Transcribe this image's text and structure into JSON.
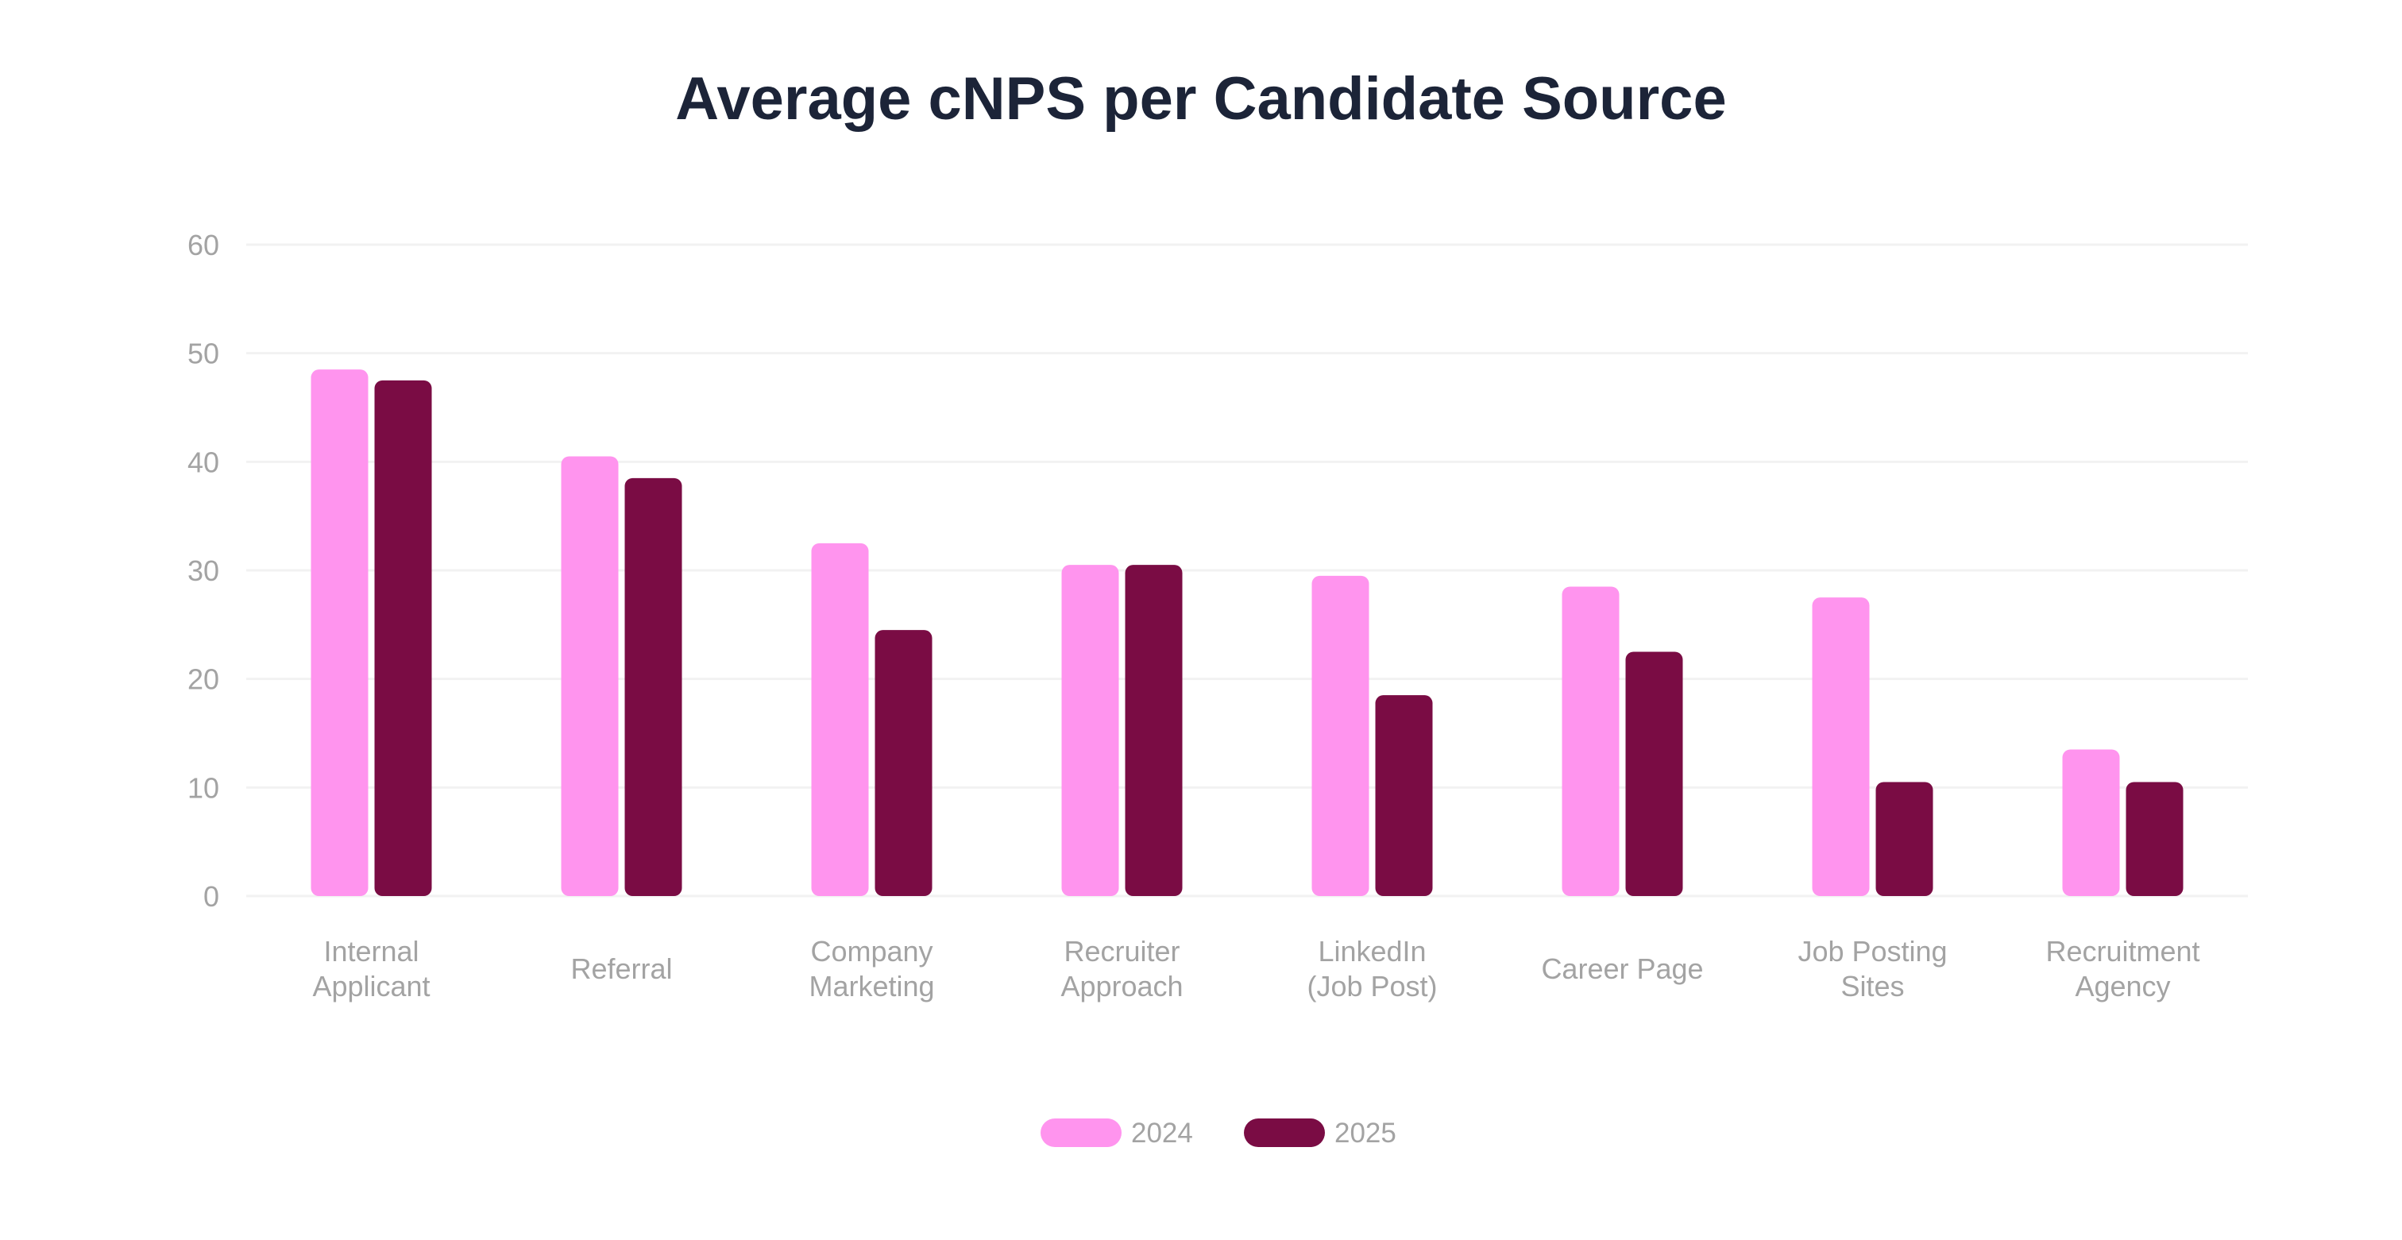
{
  "colors": {
    "series_2024": "#ff94ee",
    "series_2025": "#7a0c44",
    "title": "#1c2438",
    "axis_text": "#a3a3a3",
    "grid": "#f2f2f2"
  },
  "chart_data": {
    "type": "bar",
    "title": "Average cNPS per Candidate Source",
    "xlabel": "",
    "ylabel": "",
    "ylim": [
      0,
      60
    ],
    "yticks": [
      0,
      10,
      20,
      30,
      40,
      50,
      60
    ],
    "grid": true,
    "legend_position": "bottom-center",
    "categories": [
      [
        "Internal",
        "Applicant"
      ],
      [
        "Referral"
      ],
      [
        "Company",
        "Marketing"
      ],
      [
        "Recruiter",
        "Approach"
      ],
      [
        "LinkedIn",
        "(Job Post)"
      ],
      [
        "Career Page"
      ],
      [
        "Job Posting",
        "Sites"
      ],
      [
        "Recruitment",
        "Agency"
      ]
    ],
    "series": [
      {
        "name": "2024",
        "values": [
          48.5,
          40.5,
          32.5,
          30.5,
          29.5,
          28.5,
          27.5,
          13.5
        ]
      },
      {
        "name": "2025",
        "values": [
          47.5,
          38.5,
          24.5,
          30.5,
          18.5,
          22.5,
          10.5,
          10.5
        ]
      }
    ]
  }
}
